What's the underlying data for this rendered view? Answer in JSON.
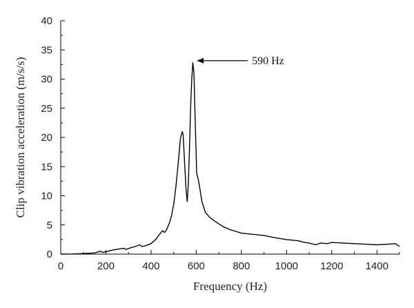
{
  "chart_data": {
    "type": "line",
    "title": "",
    "xlabel": "Frequency (Hz)",
    "ylabel": "Clip vibration acceleration (m/s/s)",
    "xlim": [
      0,
      1500
    ],
    "ylim": [
      0,
      40
    ],
    "x_ticks": [
      0,
      200,
      400,
      600,
      800,
      1000,
      1200,
      1400
    ],
    "y_ticks": [
      0,
      5,
      10,
      15,
      20,
      25,
      30,
      35,
      40
    ],
    "grid": false,
    "legend": "none",
    "line_color": "#000000",
    "annotation": {
      "text": "590 Hz",
      "x": 590,
      "y": 32.8
    },
    "series": [
      {
        "x": [
          0,
          50,
          100,
          150,
          175,
          185,
          200,
          230,
          260,
          280,
          290,
          310,
          330,
          350,
          360,
          380,
          400,
          420,
          440,
          450,
          460,
          470,
          480,
          490,
          500,
          510,
          520,
          530,
          538,
          542,
          548,
          555,
          560,
          565,
          570,
          575,
          580,
          585,
          590,
          596,
          602,
          608,
          615,
          625,
          640,
          660,
          680,
          700,
          720,
          750,
          800,
          850,
          900,
          950,
          1000,
          1050,
          1080,
          1100,
          1130,
          1150,
          1180,
          1200,
          1250,
          1300,
          1350,
          1400,
          1450,
          1480,
          1490,
          1500
        ],
        "y": [
          0,
          0.02,
          0.1,
          0.2,
          0.5,
          0.3,
          0.4,
          0.7,
          0.9,
          1.0,
          0.8,
          1.1,
          1.3,
          1.6,
          1.3,
          1.5,
          1.8,
          2.5,
          3.5,
          4.0,
          3.7,
          4.3,
          5.2,
          6.5,
          8.5,
          11.5,
          15.5,
          19.8,
          21.0,
          20.5,
          16.0,
          11.0,
          9.0,
          12.0,
          18.0,
          25.0,
          30.0,
          32.8,
          31.0,
          22.0,
          13.8,
          13.0,
          11.5,
          9.0,
          7.2,
          6.3,
          5.7,
          5.2,
          4.7,
          4.2,
          3.6,
          3.4,
          3.2,
          2.8,
          2.5,
          2.3,
          2.0,
          1.9,
          1.6,
          1.9,
          1.8,
          2.0,
          1.9,
          1.8,
          1.7,
          1.6,
          1.7,
          1.8,
          1.6,
          1.3
        ]
      }
    ]
  }
}
